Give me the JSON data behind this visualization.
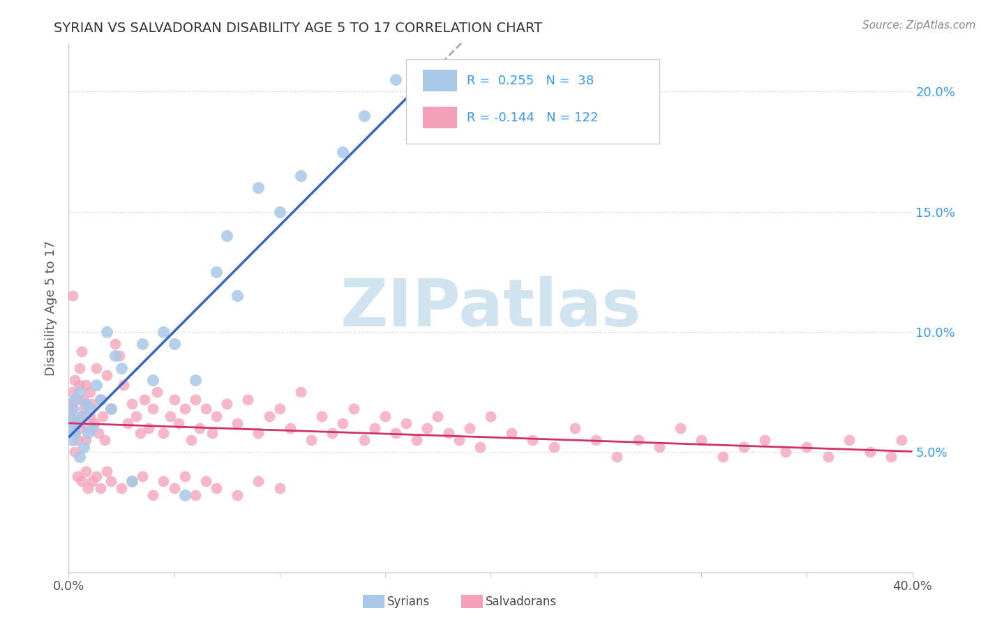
{
  "title": "SYRIAN VS SALVADORAN DISABILITY AGE 5 TO 17 CORRELATION CHART",
  "source": "Source: ZipAtlas.com",
  "ylabel": "Disability Age 5 to 17",
  "xmin": 0.0,
  "xmax": 0.4,
  "ymin": 0.0,
  "ymax": 0.22,
  "syrian_R": 0.255,
  "syrian_N": 38,
  "salvadoran_R": -0.144,
  "salvadoran_N": 122,
  "syrian_color": "#a8c8e8",
  "salvadoran_color": "#f4a0b8",
  "syrian_line_color": "#3366cc",
  "salvadoran_line_color": "#cc3366",
  "gray_dash_color": "#aaaaaa",
  "watermark_color": "#d0e4f0",
  "background_color": "#ffffff",
  "grid_color": "#cccccc",
  "legend_text_color": "#3399ff",
  "tick_label_color_right": "#3399ff",
  "tick_label_color": "#555555",
  "title_color": "#333333",
  "source_color": "#888888",
  "ylabel_color": "#555555"
}
